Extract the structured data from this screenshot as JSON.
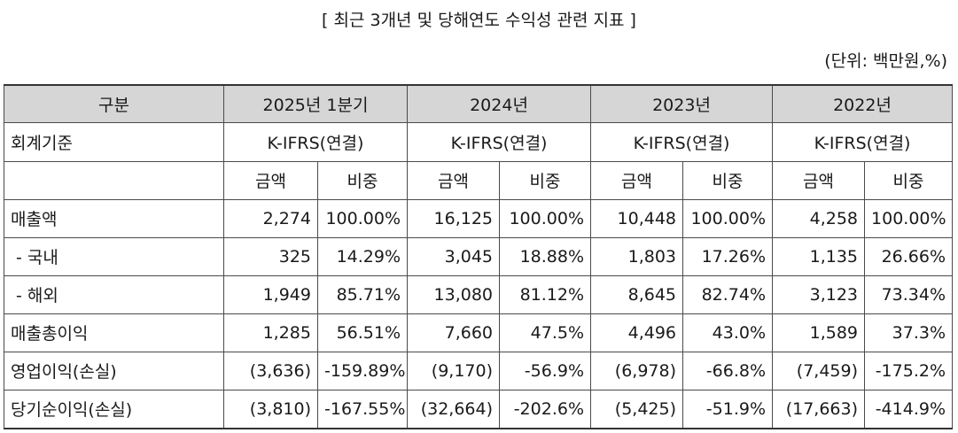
{
  "title": "[ 최근 3개년 및 당해연도 수익성 관련 지표 ]",
  "unit": "(단위: 백만원,%)",
  "header": {
    "col0": "구분",
    "periods": [
      "2025년 1분기",
      "2024년",
      "2023년",
      "2022년"
    ]
  },
  "standard": {
    "label": "회계기준",
    "values": [
      "K-IFRS(연결)",
      "K-IFRS(연결)",
      "K-IFRS(연결)",
      "K-IFRS(연결)"
    ]
  },
  "subheader": {
    "amount": "금액",
    "ratio": "비중"
  },
  "rows": [
    {
      "label": "매출액",
      "cells": [
        "2,274",
        "100.00%",
        "16,125",
        "100.00%",
        "10,448",
        "100.00%",
        "4,258",
        "100.00%"
      ]
    },
    {
      "label": " - 국내",
      "cells": [
        "325",
        "14.29%",
        "3,045",
        "18.88%",
        "1,803",
        "17.26%",
        "1,135",
        "26.66%"
      ]
    },
    {
      "label": " - 해외",
      "cells": [
        "1,949",
        "85.71%",
        "13,080",
        "81.12%",
        "8,645",
        "82.74%",
        "3,123",
        "73.34%"
      ]
    },
    {
      "label": "매출총이익",
      "cells": [
        "1,285",
        "56.51%",
        "7,660",
        "47.5%",
        "4,496",
        "43.0%",
        "1,589",
        "37.3%"
      ]
    },
    {
      "label": "영업이익(손실)",
      "cells": [
        "(3,636)",
        "-159.89%",
        "(9,170)",
        "-56.9%",
        "(6,978)",
        "-66.8%",
        "(7,459)",
        "-175.2%"
      ]
    },
    {
      "label": "당기순이익(손실)",
      "cells": [
        "(3,810)",
        "-167.55%",
        "(32,664)",
        "-202.6%",
        "(5,425)",
        "-51.9%",
        "(17,663)",
        "-414.9%"
      ]
    }
  ]
}
